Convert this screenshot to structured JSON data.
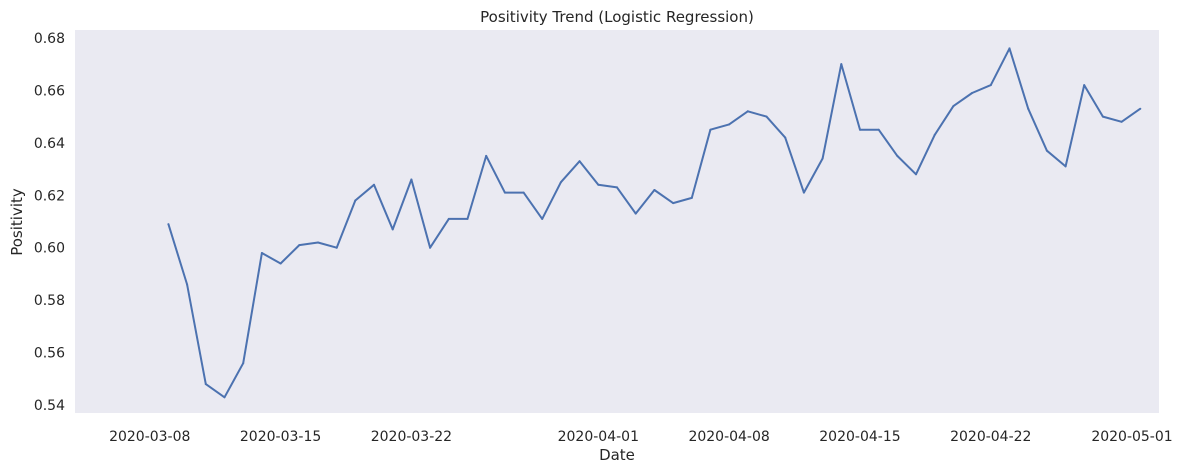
{
  "chart_data": {
    "type": "line",
    "title": "Positivity Trend (Logistic Regression)",
    "xlabel": "Date",
    "ylabel": "Positivity",
    "x_ticks": [
      "2020-03-08",
      "2020-03-15",
      "2020-03-22",
      "2020-04-01",
      "2020-04-08",
      "2020-04-15",
      "2020-04-22",
      "2020-05-01"
    ],
    "y_ticks": [
      "0.54",
      "0.56",
      "0.58",
      "0.60",
      "0.62",
      "0.64",
      "0.66",
      "0.68"
    ],
    "xlim": [
      "2020-03-04",
      "2020-05-01"
    ],
    "ylim": [
      0.537,
      0.683
    ],
    "grid": false,
    "colors": {
      "line": "#4c72b0",
      "plot_bg": "#eaeaf2",
      "text": "#262626"
    },
    "series": [
      {
        "x": [
          "2020-03-09",
          "2020-03-10",
          "2020-03-11",
          "2020-03-12",
          "2020-03-13",
          "2020-03-14",
          "2020-03-15",
          "2020-03-16",
          "2020-03-17",
          "2020-03-18",
          "2020-03-19",
          "2020-03-20",
          "2020-03-21",
          "2020-03-22",
          "2020-03-23",
          "2020-03-24",
          "2020-03-25",
          "2020-03-26",
          "2020-03-27",
          "2020-03-28",
          "2020-03-29",
          "2020-03-30",
          "2020-03-31",
          "2020-04-01",
          "2020-04-02",
          "2020-04-03",
          "2020-04-04",
          "2020-04-05",
          "2020-04-06",
          "2020-04-07",
          "2020-04-08",
          "2020-04-09",
          "2020-04-10",
          "2020-04-11",
          "2020-04-12",
          "2020-04-13",
          "2020-04-14",
          "2020-04-15",
          "2020-04-16",
          "2020-04-17",
          "2020-04-18",
          "2020-04-19",
          "2020-04-20",
          "2020-04-21",
          "2020-04-22",
          "2020-04-23",
          "2020-04-24",
          "2020-04-25",
          "2020-04-26",
          "2020-04-27",
          "2020-04-28",
          "2020-04-29",
          "2020-04-30"
        ],
        "values": [
          0.609,
          0.586,
          0.548,
          0.543,
          0.556,
          0.598,
          0.594,
          0.601,
          0.602,
          0.6,
          0.618,
          0.624,
          0.607,
          0.626,
          0.6,
          0.611,
          0.611,
          0.635,
          0.621,
          0.621,
          0.611,
          0.625,
          0.633,
          0.624,
          0.623,
          0.613,
          0.622,
          0.617,
          0.619,
          0.645,
          0.647,
          0.652,
          0.65,
          0.642,
          0.621,
          0.634,
          0.67,
          0.645,
          0.645,
          0.635,
          0.628,
          0.643,
          0.654,
          0.659,
          0.662,
          0.676,
          0.653,
          0.637,
          0.631,
          0.662,
          0.65,
          0.648,
          0.653
        ]
      }
    ]
  }
}
